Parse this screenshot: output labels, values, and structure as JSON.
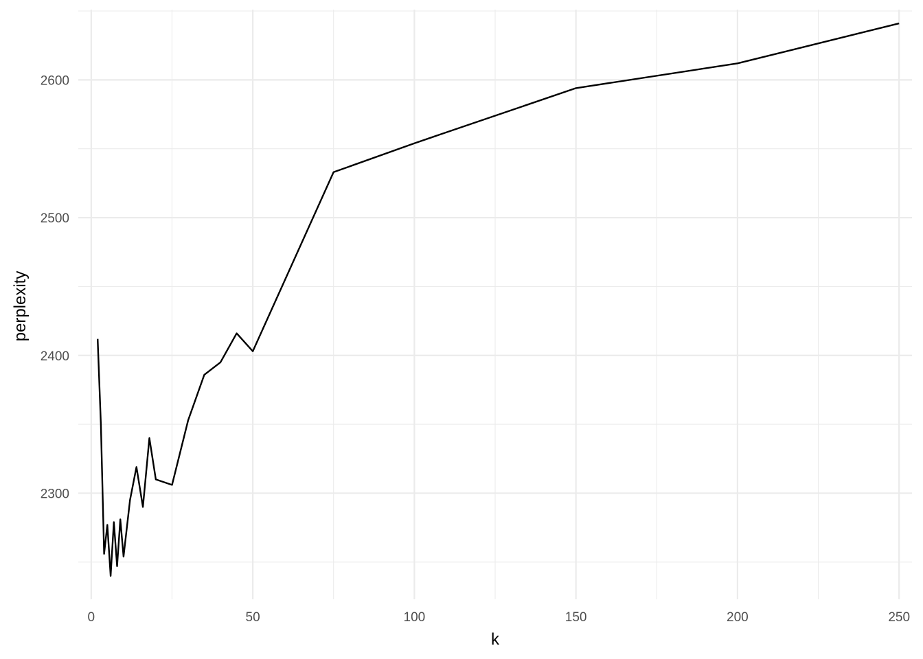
{
  "chart_data": {
    "type": "line",
    "title": "",
    "xlabel": "k",
    "ylabel": "perplexity",
    "xlim": [
      -4,
      254
    ],
    "ylim": [
      2223,
      2651
    ],
    "x_ticks": [
      0,
      50,
      100,
      150,
      200,
      250
    ],
    "x_tick_labels": [
      "0",
      "50",
      "100",
      "150",
      "200",
      "250"
    ],
    "y_ticks": [
      2300,
      2400,
      2500,
      2600
    ],
    "y_tick_labels": [
      "2300",
      "2400",
      "2500",
      "2600"
    ],
    "grid": true,
    "legend": "none",
    "line_color": "#000000",
    "grid_color": "#ebebeb",
    "series": [
      {
        "x": [
          2,
          3,
          4,
          5,
          6,
          7,
          8,
          9,
          10,
          12,
          14,
          16,
          18,
          20,
          25,
          30,
          35,
          40,
          45,
          50,
          75,
          100,
          150,
          200,
          250
        ],
        "y": [
          2412,
          2350,
          2256,
          2277,
          2240,
          2279,
          2247,
          2281,
          2254,
          2295,
          2319,
          2290,
          2340,
          2310,
          2306,
          2353,
          2386,
          2395,
          2416,
          2403,
          2533,
          2554,
          2594,
          2612,
          2641
        ]
      }
    ]
  }
}
